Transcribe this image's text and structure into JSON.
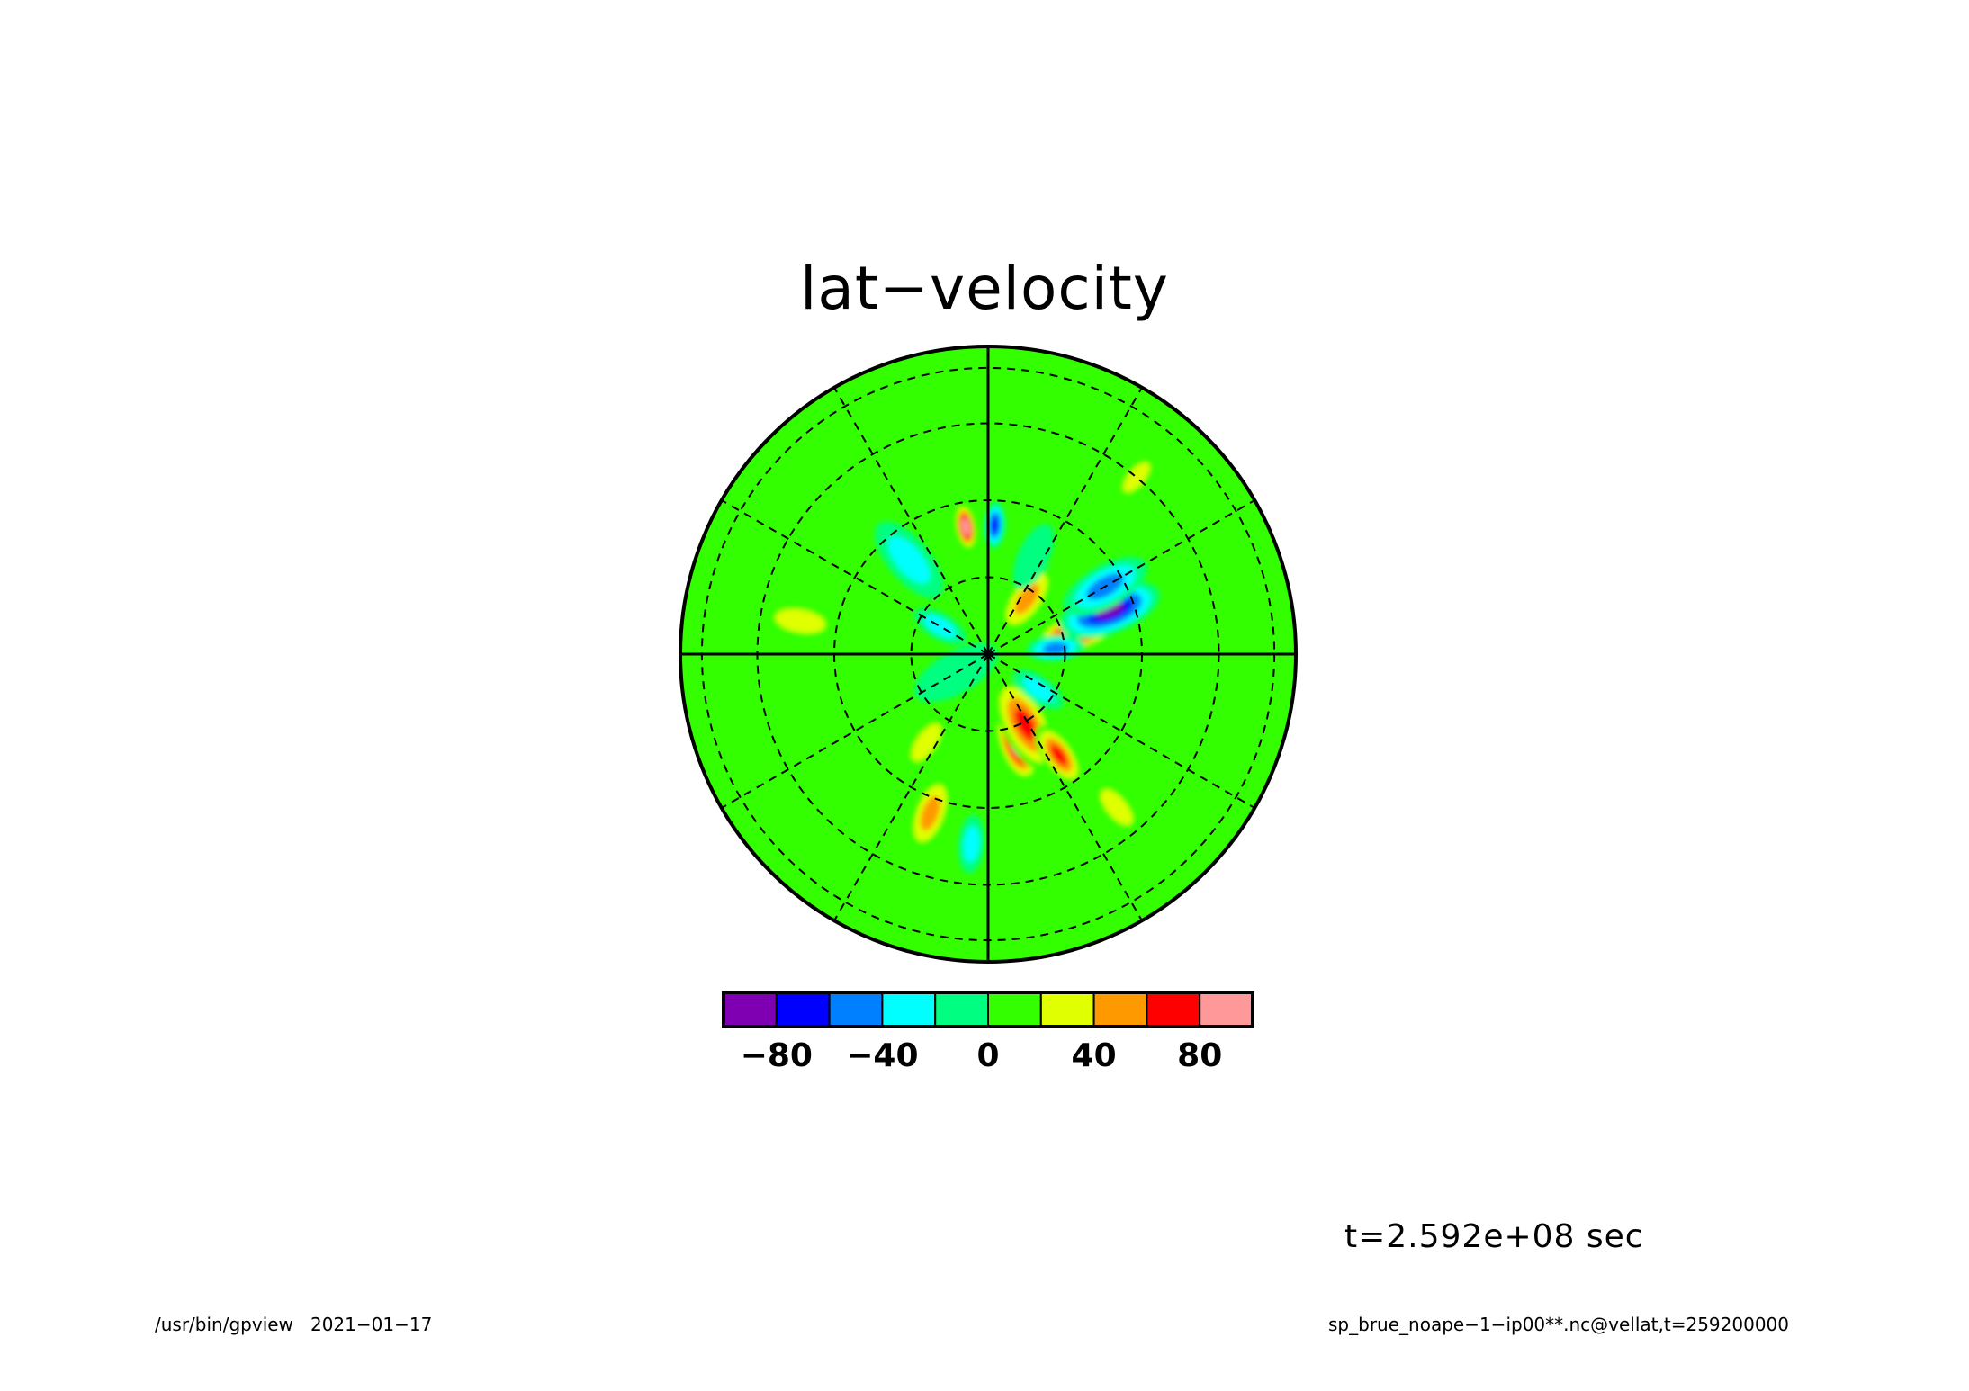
{
  "title": "lat−velocity",
  "time_label": "t=2.592e+08 sec",
  "footer": {
    "program": "/usr/bin/gpview",
    "date": "2021−01−17",
    "source": "sp_brue_noape−1−ip00**.nc@vellat,t=259200000"
  },
  "chart_data": {
    "type": "heatmap",
    "projection": "polar-stereographic",
    "title": "lat−velocity",
    "colorbar": {
      "levels": [
        -100,
        -80,
        -60,
        -40,
        -20,
        0,
        20,
        40,
        60,
        80,
        100
      ],
      "colors": [
        "#7f00b2",
        "#0000ff",
        "#0080ff",
        "#00ffff",
        "#00ff80",
        "#33ff00",
        "#e0ff00",
        "#ff9900",
        "#ff0000",
        "#ff9999"
      ],
      "tick_labels": [
        "−80",
        "−40",
        "0",
        "40",
        "80"
      ],
      "tick_values": [
        -80,
        -40,
        0,
        40,
        80
      ]
    },
    "background_color": "#33ff00",
    "features": [
      {
        "bearing": 76,
        "radius": 0.3,
        "value": 110,
        "spread": 0.07
      },
      {
        "bearing": 70,
        "radius": 0.42,
        "value": -90,
        "spread": 0.09
      },
      {
        "bearing": 60,
        "radius": 0.44,
        "value": -60,
        "spread": 0.08
      },
      {
        "bearing": 85,
        "radius": 0.22,
        "value": -60,
        "spread": 0.05
      },
      {
        "bearing": 35,
        "radius": 0.22,
        "value": 50,
        "spread": 0.07
      },
      {
        "bearing": 25,
        "radius": 0.35,
        "value": -20,
        "spread": 0.06
      },
      {
        "bearing": 3,
        "radius": 0.42,
        "value": -80,
        "spread": 0.04
      },
      {
        "bearing": 350,
        "radius": 0.42,
        "value": 110,
        "spread": 0.04
      },
      {
        "bearing": 162,
        "radius": 0.3,
        "value": 110,
        "spread": 0.07
      },
      {
        "bearing": 152,
        "radius": 0.26,
        "value": 70,
        "spread": 0.09
      },
      {
        "bearing": 145,
        "radius": 0.4,
        "value": 70,
        "spread": 0.06
      },
      {
        "bearing": 140,
        "radius": 0.65,
        "value": 40,
        "spread": 0.06
      },
      {
        "bearing": 125,
        "radius": 0.2,
        "value": -30,
        "spread": 0.05
      },
      {
        "bearing": 200,
        "radius": 0.55,
        "value": 50,
        "spread": 0.07
      },
      {
        "bearing": 215,
        "radius": 0.35,
        "value": 30,
        "spread": 0.06
      },
      {
        "bearing": 280,
        "radius": 0.62,
        "value": 40,
        "spread": 0.07
      },
      {
        "bearing": 320,
        "radius": 0.4,
        "value": -40,
        "spread": 0.08
      },
      {
        "bearing": 240,
        "radius": 0.12,
        "value": -20,
        "spread": 0.08
      },
      {
        "bearing": 185,
        "radius": 0.62,
        "value": -30,
        "spread": 0.05
      },
      {
        "bearing": 300,
        "radius": 0.18,
        "value": -30,
        "spread": 0.05
      },
      {
        "bearing": 40,
        "radius": 0.75,
        "value": 30,
        "spread": 0.05
      }
    ]
  }
}
